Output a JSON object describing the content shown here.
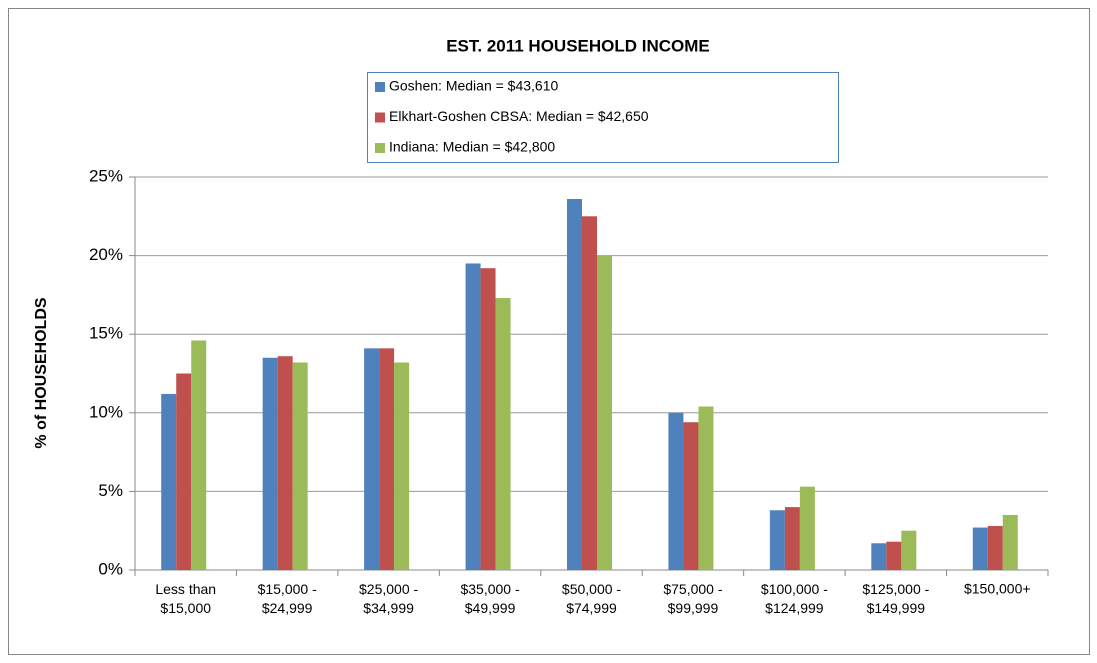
{
  "chart_data": {
    "type": "bar",
    "title": "EST. 2011 HOUSEHOLD INCOME",
    "y_label": "% of HOUSEHOLDS",
    "categories": [
      "Less than\n$15,000",
      "$15,000 -\n$24,999",
      "$25,000 -\n$34,999",
      "$35,000 -\n$49,999",
      "$50,000 -\n$74,999",
      "$75,000 -\n$99,999",
      "$100,000 -\n$124,999",
      "$125,000 -\n$149,999",
      "$150,000+"
    ],
    "series": [
      {
        "name": "Goshen:  Median = $43,610",
        "color": "#4f81bd",
        "values": [
          11.2,
          13.5,
          14.1,
          19.5,
          23.6,
          10.0,
          3.8,
          1.7,
          2.7
        ]
      },
      {
        "name": "Elkhart-Goshen CBSA:  Median = $42,650",
        "color": "#c0504d",
        "values": [
          12.5,
          13.6,
          14.1,
          19.2,
          22.5,
          9.4,
          4.0,
          1.8,
          2.8
        ]
      },
      {
        "name": "Indiana:  Median = $42,800",
        "color": "#9bbb59",
        "values": [
          14.6,
          13.2,
          13.2,
          17.3,
          20.0,
          10.4,
          5.3,
          2.5,
          3.5
        ]
      }
    ],
    "ylim": [
      0,
      25
    ],
    "yticks": [
      {
        "value": 0,
        "label": "0%"
      },
      {
        "value": 5,
        "label": "5%"
      },
      {
        "value": 10,
        "label": "10%"
      },
      {
        "value": 15,
        "label": "15%"
      },
      {
        "value": 20,
        "label": "20%"
      },
      {
        "value": 25,
        "label": "25%"
      }
    ],
    "grid": true,
    "legend": "top"
  }
}
